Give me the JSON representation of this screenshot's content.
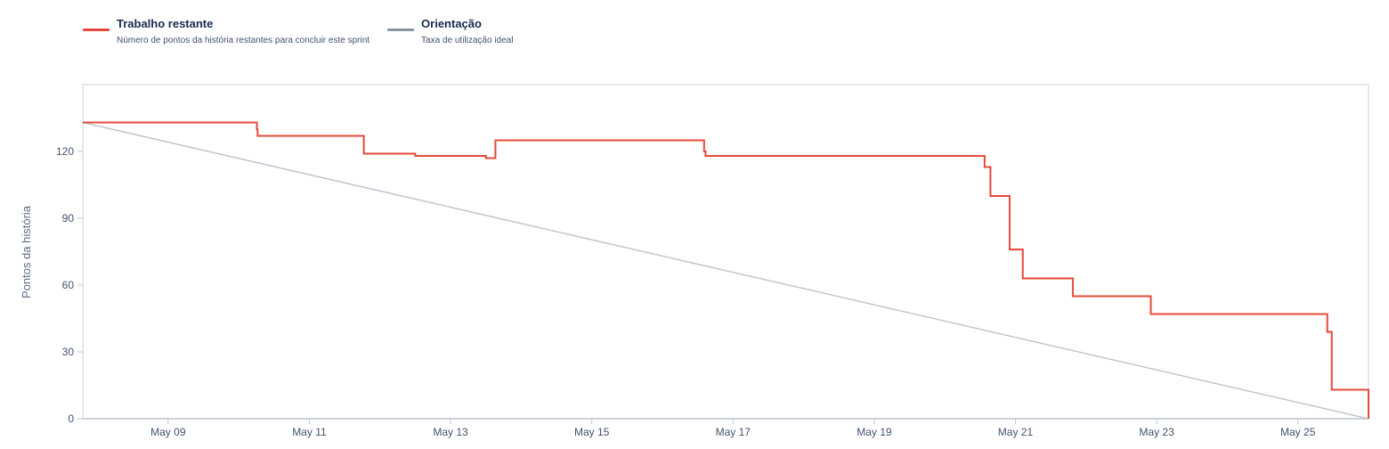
{
  "legend": {
    "remaining": {
      "title": "Trabalho restante",
      "description": "Número de pontos da história restantes para concluir este sprint",
      "color": "#e5493a"
    },
    "guideline": {
      "title": "Orientação",
      "description": "Taxa de utilização ideal",
      "color": "#8993a4"
    }
  },
  "chart_data": {
    "type": "line",
    "title": "",
    "xlabel": "",
    "ylabel": "Pontos da história",
    "x_range": [
      "2023-05-07T19:00",
      "2023-05-26T00:00"
    ],
    "xlim": [
      "2023-05-07T19:00",
      "2023-05-26T00:00"
    ],
    "ylim": [
      0,
      150
    ],
    "y_ticks": [
      0,
      30,
      60,
      90,
      120
    ],
    "x_ticks": [
      {
        "date": "2023-05-09",
        "label": "May 09"
      },
      {
        "date": "2023-05-11",
        "label": "May 11"
      },
      {
        "date": "2023-05-13",
        "label": "May 13"
      },
      {
        "date": "2023-05-15",
        "label": "May 15"
      },
      {
        "date": "2023-05-17",
        "label": "May 17"
      },
      {
        "date": "2023-05-19",
        "label": "May 19"
      },
      {
        "date": "2023-05-21",
        "label": "May 21"
      },
      {
        "date": "2023-05-23",
        "label": "May 23"
      },
      {
        "date": "2023-05-25",
        "label": "May 25"
      }
    ],
    "grid": false,
    "legend_position": "top-left",
    "series": [
      {
        "name": "Trabalho restante",
        "color": "#e5493a",
        "step": true,
        "points": [
          {
            "x": "2023-05-07T19:00",
            "y": 133
          },
          {
            "x": "2023-05-10T06:10",
            "y": 130
          },
          {
            "x": "2023-05-10T06:25",
            "y": 127
          },
          {
            "x": "2023-05-11T18:30",
            "y": 119
          },
          {
            "x": "2023-05-12T12:00",
            "y": 118
          },
          {
            "x": "2023-05-13T12:00",
            "y": 117
          },
          {
            "x": "2023-05-13T15:15",
            "y": 125
          },
          {
            "x": "2023-05-16T14:10",
            "y": 120
          },
          {
            "x": "2023-05-16T14:40",
            "y": 118
          },
          {
            "x": "2023-05-20T13:30",
            "y": 113
          },
          {
            "x": "2023-05-20T15:30",
            "y": 100
          },
          {
            "x": "2023-05-20T22:00",
            "y": 76
          },
          {
            "x": "2023-05-21T02:30",
            "y": 63
          },
          {
            "x": "2023-05-21T19:30",
            "y": 55
          },
          {
            "x": "2023-05-22T22:00",
            "y": 47
          },
          {
            "x": "2023-05-25T10:00",
            "y": 39
          },
          {
            "x": "2023-05-25T11:30",
            "y": 13
          },
          {
            "x": "2023-05-26T00:00",
            "y": 0
          }
        ]
      },
      {
        "name": "Orientação",
        "color": "#c1c7d0",
        "step": false,
        "points": [
          {
            "x": "2023-05-07T19:00",
            "y": 133
          },
          {
            "x": "2023-05-26T00:00",
            "y": 0
          }
        ]
      }
    ]
  }
}
